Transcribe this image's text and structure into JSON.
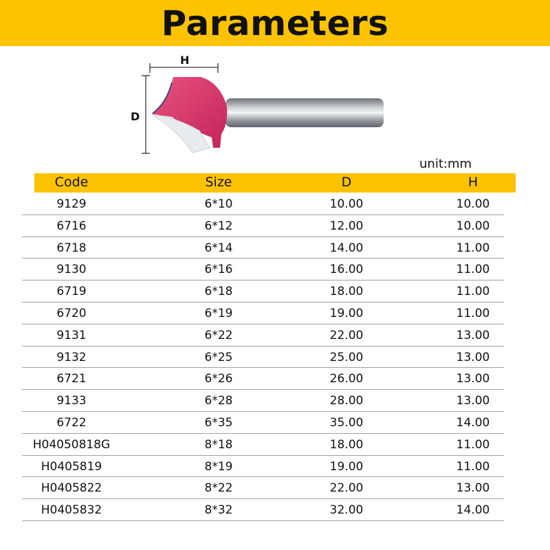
{
  "title": "Parameters",
  "diagram": {
    "h_label": "H",
    "d_label": "D"
  },
  "unit": "unit:mm",
  "colors": {
    "accent": "#fdc300",
    "cutter": "#d8346a"
  },
  "table": {
    "headers": [
      "Code",
      "Size",
      "D",
      "H"
    ],
    "rows": [
      [
        "9129",
        "6*10",
        "10.00",
        "10.00"
      ],
      [
        "6716",
        "6*12",
        "12.00",
        "10.00"
      ],
      [
        "6718",
        "6*14",
        "14.00",
        "11.00"
      ],
      [
        "9130",
        "6*16",
        "16.00",
        "11.00"
      ],
      [
        "6719",
        "6*18",
        "18.00",
        "11.00"
      ],
      [
        "6720",
        "6*19",
        "19.00",
        "11.00"
      ],
      [
        "9131",
        "6*22",
        "22.00",
        "13.00"
      ],
      [
        "9132",
        "6*25",
        "25.00",
        "13.00"
      ],
      [
        "6721",
        "6*26",
        "26.00",
        "13.00"
      ],
      [
        "9133",
        "6*28",
        "28.00",
        "13.00"
      ],
      [
        "6722",
        "6*35",
        "35.00",
        "14.00"
      ],
      [
        "H04050818G",
        "8*18",
        "18.00",
        "11.00"
      ],
      [
        "H0405819",
        "8*19",
        "19.00",
        "11.00"
      ],
      [
        "H0405822",
        "8*22",
        "22.00",
        "13.00"
      ],
      [
        "H0405832",
        "8*32",
        "32.00",
        "14.00"
      ]
    ]
  }
}
